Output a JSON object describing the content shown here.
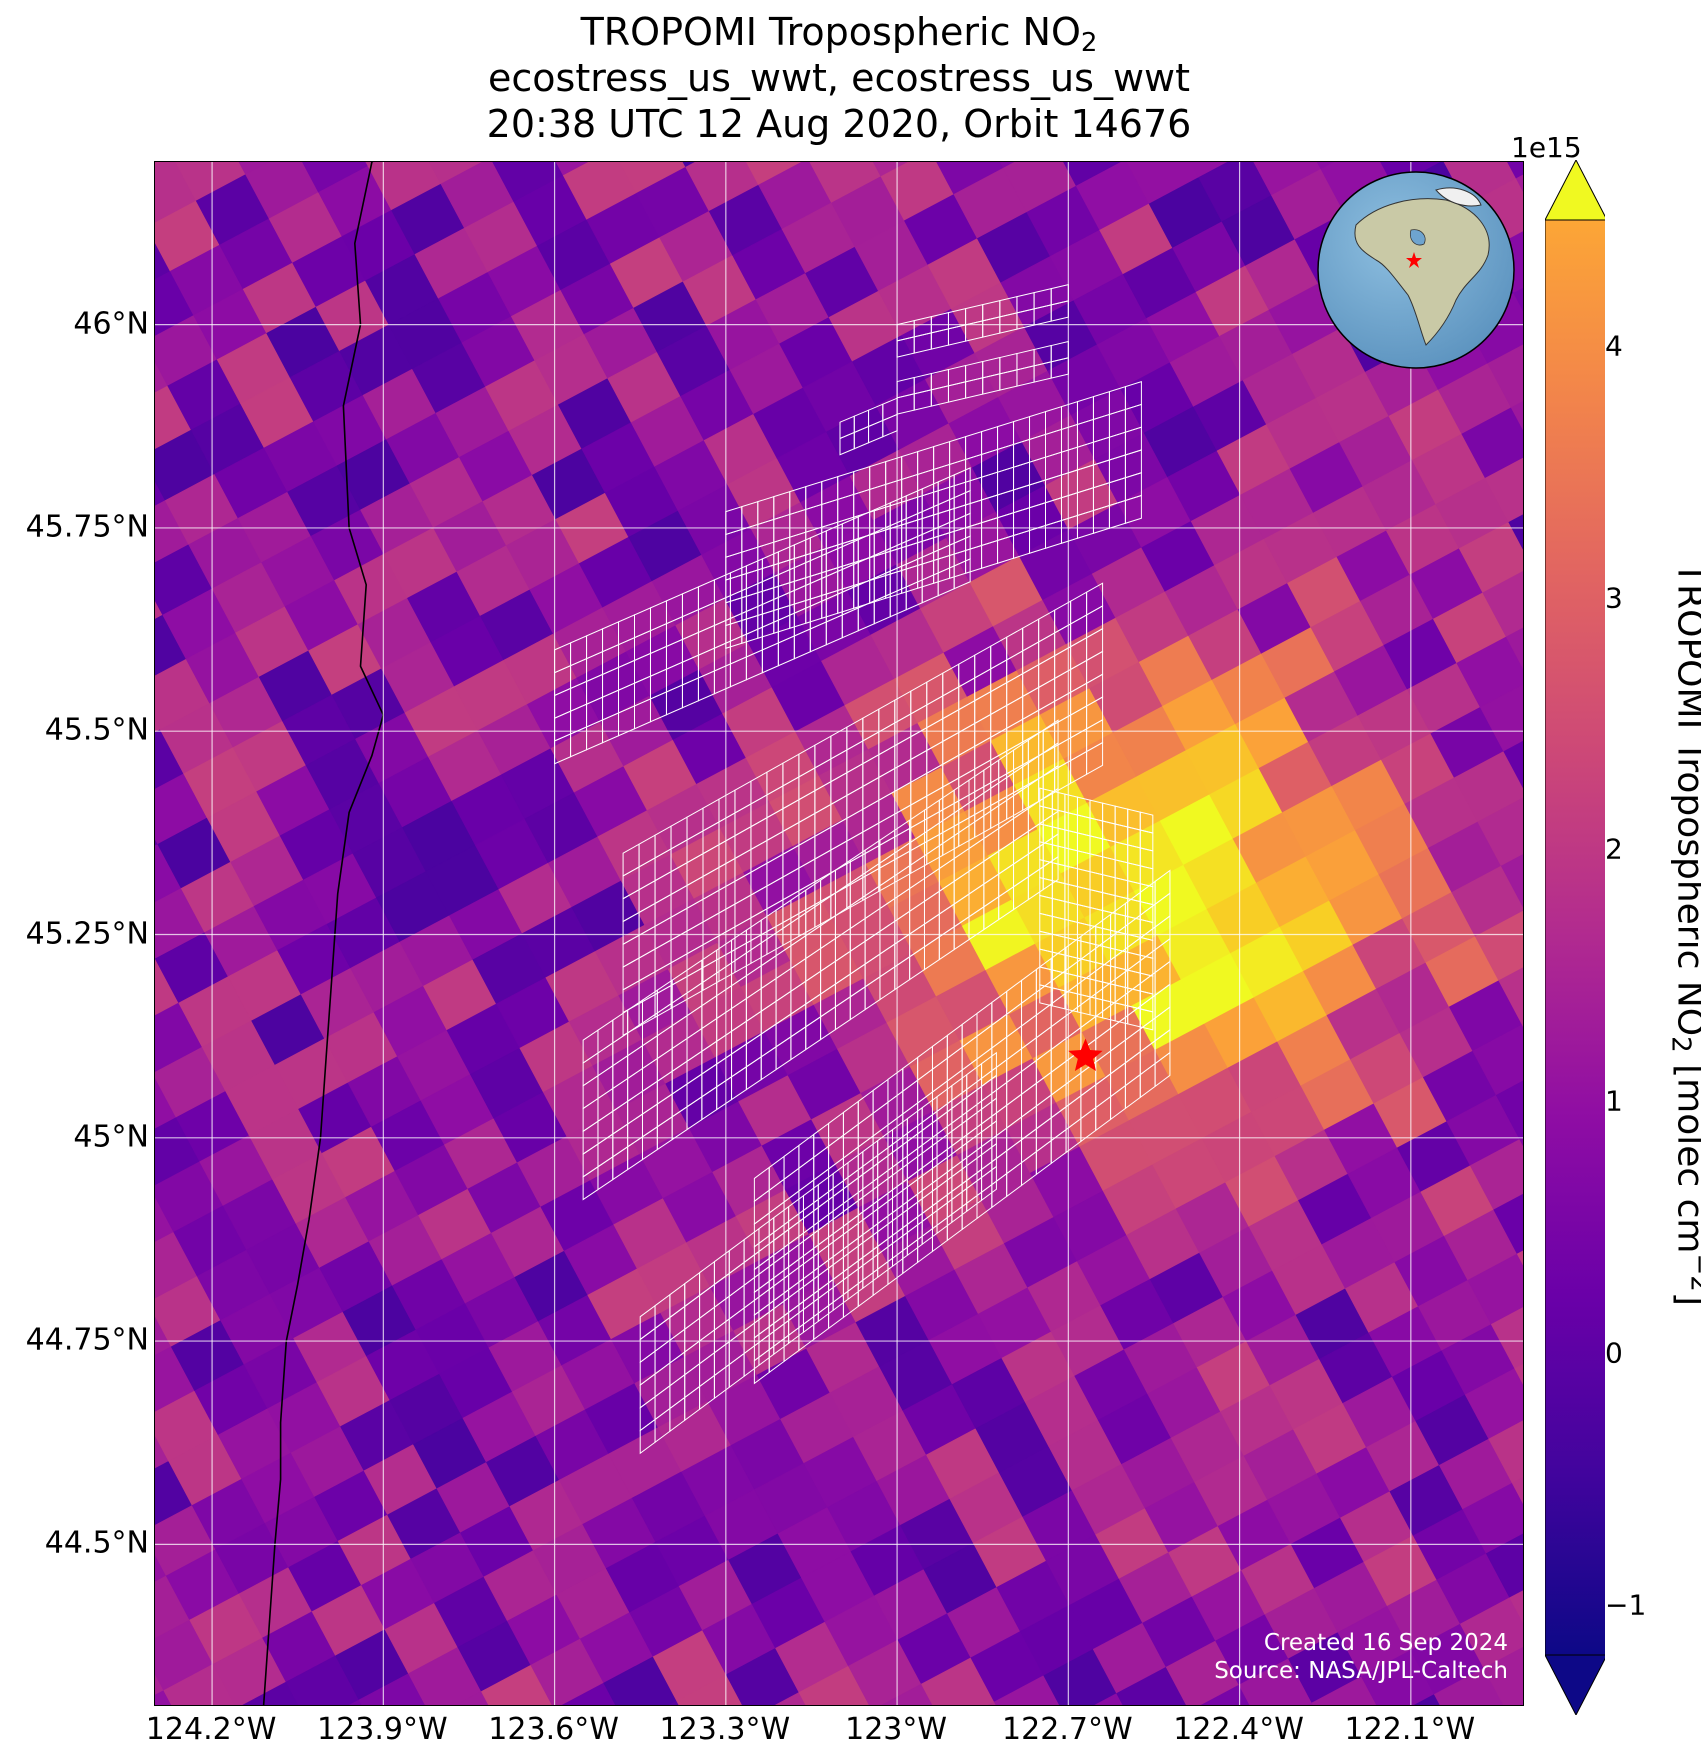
{
  "title": {
    "line1_prefix": "TROPOMI Tropospheric NO",
    "line1_sub": "2",
    "line2": "ecostress_us_wwt, ecostress_us_wwt",
    "line3": "20:38 UTC 12 Aug 2020, Orbit 14676"
  },
  "axes": {
    "lat_ticks": [
      "46°N",
      "45.75°N",
      "45.5°N",
      "45.25°N",
      "45°N",
      "44.75°N",
      "44.5°N"
    ],
    "lon_ticks": [
      "124.2°W",
      "123.9°W",
      "123.6°W",
      "123.3°W",
      "123°W",
      "122.7°W",
      "122.4°W",
      "122.1°W"
    ],
    "lat_values": [
      46.0,
      45.75,
      45.5,
      45.25,
      45.0,
      44.75,
      44.5
    ],
    "lon_values": [
      -124.2,
      -123.9,
      -123.6,
      -123.3,
      -123.0,
      -122.7,
      -122.4,
      -122.1
    ],
    "lat_range": [
      44.3,
      46.2
    ],
    "lon_range": [
      -124.3,
      -121.9
    ],
    "grid": true
  },
  "colorbar": {
    "exponent": "1e15",
    "ticks": [
      "−1",
      "0",
      "1",
      "2",
      "3",
      "4"
    ],
    "tick_values": [
      -1,
      0,
      1,
      2,
      3,
      4
    ],
    "range": [
      -1.2,
      4.5
    ],
    "colormap": "plasma",
    "extend": "both",
    "label_prefix": "TROPOMI Tropospheric NO",
    "label_sub": "2",
    "label_mid": " [molec cm",
    "label_sup": "−2",
    "label_suffix": "]"
  },
  "marker": {
    "type": "red-star",
    "lat": 45.1,
    "lon": -122.67,
    "color": "#ff0000"
  },
  "inset_globe": {
    "marker": "red-star",
    "region": "North America"
  },
  "credits": {
    "created": "Created 16 Sep 2024",
    "source": "Source: NASA/JPL-Caltech"
  },
  "colors": {
    "grid": "#ffffff",
    "coastline": "#000000",
    "swath_outline": "#ffffff",
    "ocean": "#6ea4cf"
  },
  "chart_data": {
    "type": "heatmap",
    "quantity": "TROPOMI Tropospheric NO2",
    "units": "molec cm^-2 (x1e15)",
    "hotspot": {
      "lat": 45.3,
      "lon": -122.55,
      "approx_value": 4.5
    },
    "typical_background": 0.5
  }
}
